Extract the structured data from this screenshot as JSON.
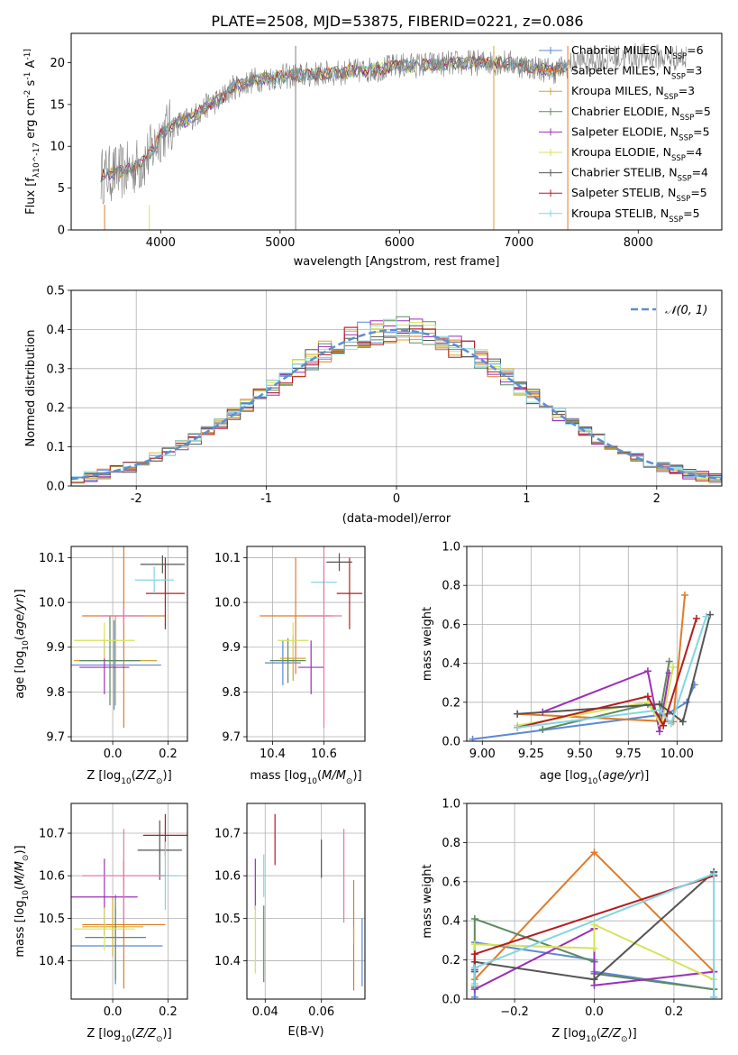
{
  "figure_title": "PLATE=2508, MJD=53875, FIBERID=0221, z=0.086",
  "palette": {
    "Chabrier MILES": "#5b87d6",
    "Salpeter MILES": "#e07b2b",
    "Kroupa MILES": "#d4a52c",
    "Chabrier ELODIE": "#5f8a60",
    "Salpeter ELODIE": "#9b30b8",
    "Kroupa ELODIE": "#d4e35a",
    "Chabrier STELIB": "#555555",
    "Salpeter STELIB": "#b51d1d",
    "Kroupa STELIB": "#82d5e3",
    "gauss": "#5b8fd0",
    "pink": "#e07aa8"
  },
  "chart_data": [
    {
      "id": "spectrum",
      "type": "line",
      "xlabel": "wavelength [Angstrom, rest frame]",
      "ylabel": "Flux [f_λ10^-17 erg cm^-2 s^-1 A^-1]",
      "xlim": [
        3250,
        8700
      ],
      "ylim": [
        0,
        23.5
      ],
      "xticks": [
        4000,
        5000,
        6000,
        7000,
        8000
      ],
      "yticks": [
        0,
        5,
        10,
        15,
        20
      ],
      "legend_position": "upper right",
      "legend": [
        {
          "name": "Chabrier MILES",
          "nssp": "6"
        },
        {
          "name": "Salpeter MILES",
          "nssp": "3"
        },
        {
          "name": "Kroupa MILES",
          "nssp": "3"
        },
        {
          "name": "Chabrier ELODIE",
          "nssp": "5"
        },
        {
          "name": "Salpeter ELODIE",
          "nssp": "5"
        },
        {
          "name": "Kroupa ELODIE",
          "nssp": "4"
        },
        {
          "name": "Chabrier STELIB",
          "nssp": "4"
        },
        {
          "name": "Salpeter STELIB",
          "nssp": "5"
        },
        {
          "name": "Kroupa STELIB",
          "nssp": "5"
        }
      ],
      "continuum": [
        [
          3500,
          6.5
        ],
        [
          3700,
          7
        ],
        [
          3850,
          8
        ],
        [
          3950,
          10
        ],
        [
          4000,
          11.5
        ],
        [
          4100,
          12.5
        ],
        [
          4200,
          13
        ],
        [
          4300,
          13.8
        ],
        [
          4400,
          15
        ],
        [
          4500,
          15.6
        ],
        [
          4600,
          17
        ],
        [
          4800,
          18
        ],
        [
          5000,
          18.3
        ],
        [
          5200,
          18.5
        ],
        [
          5500,
          18.8
        ],
        [
          5800,
          19.2
        ],
        [
          6000,
          19.6
        ],
        [
          6300,
          19.8
        ],
        [
          6600,
          20
        ],
        [
          6900,
          20
        ],
        [
          7100,
          19.5
        ],
        [
          7300,
          19
        ],
        [
          7500,
          20.2
        ],
        [
          8000,
          20.8
        ],
        [
          8400,
          20.5
        ]
      ]
    },
    {
      "id": "residuals",
      "type": "line",
      "xlabel": "(data-model)/error",
      "ylabel": "Normed distribution",
      "xlim": [
        -2.5,
        2.5
      ],
      "ylim": [
        0,
        0.5
      ],
      "xticks": [
        -2,
        -1,
        0,
        1,
        2
      ],
      "yticks": [
        0.0,
        0.1,
        0.2,
        0.3,
        0.4,
        0.5
      ],
      "grid": true,
      "legend_position": "upper right",
      "gauss_label": "𝒩(0, 1)"
    },
    {
      "id": "age-vs-Z",
      "type": "scatter",
      "xlabel": "Z [log10(Z/Z⊙)]",
      "ylabel": "age  [log10(age/yr)]",
      "xlim": [
        -0.15,
        0.27
      ],
      "ylim": [
        9.69,
        10.125
      ],
      "xticks": [
        0.0,
        0.2
      ],
      "yticks": [
        9.7,
        9.8,
        9.9,
        10.0,
        10.1
      ],
      "points": [
        {
          "model": "Chabrier MILES",
          "x": 0.005,
          "y": 9.86,
          "xerr": 0.17,
          "yerr": 0.1
        },
        {
          "model": "Salpeter MILES",
          "x": 0.04,
          "y": 9.97,
          "xerr": 0.15,
          "yerr": 0.25
        },
        {
          "model": "Kroupa MILES",
          "x": 0.01,
          "y": 9.87,
          "xerr": 0.15,
          "yerr": 0.1
        },
        {
          "model": "Chabrier ELODIE",
          "x": -0.01,
          "y": 9.87,
          "xerr": 0.11,
          "yerr": 0.1
        },
        {
          "model": "Salpeter ELODIE",
          "x": -0.03,
          "y": 9.855,
          "xerr": 0.09,
          "yerr": 0.06
        },
        {
          "model": "Kroupa ELODIE",
          "x": -0.03,
          "y": 9.915,
          "xerr": 0.11,
          "yerr": 0.04
        },
        {
          "model": "Chabrier STELIB",
          "x": 0.18,
          "y": 10.085,
          "xerr": 0.08,
          "yerr": 0.02
        },
        {
          "model": "Salpeter STELIB",
          "x": 0.19,
          "y": 10.02,
          "xerr": 0.07,
          "yerr": 0.08
        },
        {
          "model": "Kroupa STELIB",
          "x": 0.15,
          "y": 10.05,
          "xerr": 0.07,
          "yerr": 0.03
        },
        {
          "model": "pink",
          "x": 0.04,
          "y": 9.97,
          "xerr": 0.08,
          "yerr": 0.02
        }
      ]
    },
    {
      "id": "age-vs-mass",
      "type": "scatter",
      "xlabel": "mass [log10(M/M⊙)]",
      "ylabel": "",
      "xlim": [
        10.3,
        10.76
      ],
      "ylim": [
        9.69,
        10.125
      ],
      "xticks": [
        10.4,
        10.6
      ],
      "yticks": [
        9.7,
        9.8,
        9.9,
        10.0,
        10.1
      ],
      "points": [
        {
          "model": "Chabrier MILES",
          "x": 10.44,
          "y": 9.865,
          "xerr": 0.07,
          "yerr": 0.05
        },
        {
          "model": "Salpeter MILES",
          "x": 10.49,
          "y": 9.97,
          "xerr": 0.14,
          "yerr": 0.13
        },
        {
          "model": "Kroupa MILES",
          "x": 10.48,
          "y": 9.875,
          "xerr": 0.05,
          "yerr": 0.05
        },
        {
          "model": "Chabrier ELODIE",
          "x": 10.46,
          "y": 9.87,
          "xerr": 0.07,
          "yerr": 0.05
        },
        {
          "model": "Salpeter ELODIE",
          "x": 10.55,
          "y": 9.855,
          "xerr": 0.05,
          "yerr": 0.06
        },
        {
          "model": "Kroupa ELODIE",
          "x": 10.48,
          "y": 9.915,
          "xerr": 0.06,
          "yerr": 0.04
        },
        {
          "model": "Chabrier STELIB",
          "x": 10.66,
          "y": 10.09,
          "xerr": 0.05,
          "yerr": 0.02
        },
        {
          "model": "Salpeter STELIB",
          "x": 10.7,
          "y": 10.02,
          "xerr": 0.05,
          "yerr": 0.08
        },
        {
          "model": "Kroupa STELIB",
          "x": 10.6,
          "y": 10.045,
          "xerr": 0.05,
          "yerr": 0.04
        },
        {
          "model": "pink",
          "x": 10.6,
          "y": 9.97,
          "xerr": 0.07,
          "yerr": 0.25
        }
      ]
    },
    {
      "id": "massweight-vs-age",
      "type": "line",
      "xlabel": "age  [log10(age/yr)]",
      "ylabel": "mass weight",
      "xlim": [
        8.92,
        10.23
      ],
      "ylim": [
        0,
        1.0
      ],
      "xticks": [
        9.0,
        9.25,
        9.5,
        9.75,
        10.0
      ],
      "xticklabels": [
        "9.00",
        "9.25",
        "9.50",
        "9.75",
        "10.00"
      ],
      "yticks": [
        0.0,
        0.2,
        0.4,
        0.6,
        0.8,
        1.0
      ],
      "grid": true,
      "series": [
        {
          "model": "Chabrier MILES",
          "x": [
            8.95,
            9.95,
            10.05,
            10.09
          ],
          "y": [
            0.01,
            0.14,
            0.2,
            0.29
          ]
        },
        {
          "model": "Salpeter MILES",
          "x": [
            9.18,
            9.98,
            10.04
          ],
          "y": [
            0.14,
            0.1,
            0.75
          ]
        },
        {
          "model": "Chabrier ELODIE",
          "x": [
            9.31,
            9.85,
            9.91,
            9.96
          ],
          "y": [
            0.06,
            0.19,
            0.13,
            0.41
          ]
        },
        {
          "model": "Salpeter ELODIE",
          "x": [
            9.31,
            9.85,
            9.91,
            9.96
          ],
          "y": [
            0.15,
            0.36,
            0.05,
            0.35
          ]
        },
        {
          "model": "Kroupa ELODIE",
          "x": [
            9.18,
            9.85,
            9.92,
            9.98
          ],
          "y": [
            0.08,
            0.2,
            0.08,
            0.38
          ]
        },
        {
          "model": "Chabrier STELIB",
          "x": [
            9.18,
            9.91,
            10.03,
            10.17
          ],
          "y": [
            0.14,
            0.19,
            0.1,
            0.65
          ]
        },
        {
          "model": "Salpeter STELIB",
          "x": [
            9.18,
            9.85,
            9.93,
            10.1
          ],
          "y": [
            0.07,
            0.23,
            0.08,
            0.63
          ]
        },
        {
          "model": "Kroupa STELIB",
          "x": [
            9.18,
            9.91,
            9.97,
            10.15
          ],
          "y": [
            0.07,
            0.16,
            0.09,
            0.64
          ]
        }
      ]
    },
    {
      "id": "mass-vs-Z",
      "type": "scatter",
      "xlabel": "Z [log10(Z/Z⊙)]",
      "ylabel": "mass [log10(M/M⊙)]",
      "xlim": [
        -0.15,
        0.27
      ],
      "ylim": [
        10.31,
        10.77
      ],
      "xticks": [
        0.0,
        0.2
      ],
      "yticks": [
        10.4,
        10.5,
        10.6,
        10.7
      ],
      "points": [
        {
          "model": "Chabrier MILES",
          "x": 0.01,
          "y": 10.435,
          "xerr": 0.17,
          "yerr": 0.09
        },
        {
          "model": "Salpeter MILES",
          "x": 0.04,
          "y": 10.485,
          "xerr": 0.15,
          "yerr": 0.15
        },
        {
          "model": "Kroupa MILES",
          "x": 0.0,
          "y": 10.48,
          "xerr": 0.11,
          "yerr": 0.07
        },
        {
          "model": "Chabrier ELODIE",
          "x": 0.01,
          "y": 10.455,
          "xerr": 0.11,
          "yerr": 0.1
        },
        {
          "model": "Salpeter ELODIE",
          "x": -0.03,
          "y": 10.55,
          "xerr": 0.12,
          "yerr": 0.09
        },
        {
          "model": "Kroupa ELODIE",
          "x": -0.03,
          "y": 10.475,
          "xerr": 0.11,
          "yerr": 0.05
        },
        {
          "model": "Chabrier STELIB",
          "x": 0.17,
          "y": 10.66,
          "xerr": 0.08,
          "yerr": 0.07
        },
        {
          "model": "Salpeter STELIB",
          "x": 0.19,
          "y": 10.695,
          "xerr": 0.08,
          "yerr": 0.05
        },
        {
          "model": "Kroupa STELIB",
          "x": 0.19,
          "y": 10.6,
          "xerr": 0.05,
          "yerr": 0.08
        },
        {
          "model": "pink",
          "x": 0.04,
          "y": 10.6,
          "xerr": 0.15,
          "yerr": 0.11
        }
      ]
    },
    {
      "id": "mass-vs-EBV",
      "type": "scatter",
      "xlabel": "E(B-V)",
      "ylabel": "",
      "xlim": [
        0.0335,
        0.0755
      ],
      "ylim": [
        10.31,
        10.77
      ],
      "xticks": [
        0.04,
        0.06
      ],
      "yticks": [
        10.4,
        10.5,
        10.6,
        10.7
      ],
      "points": [
        {
          "model": "Chabrier MILES",
          "x": 0.0745,
          "y": 10.42,
          "yerr": 0.08
        },
        {
          "model": "Salpeter MILES",
          "x": 0.0715,
          "y": 10.46,
          "yerr": 0.13
        },
        {
          "model": "Kroupa MILES",
          "x": 0.0715,
          "y": 10.46,
          "yerr": 0.02
        },
        {
          "model": "Chabrier ELODIE",
          "x": 0.0395,
          "y": 10.44,
          "yerr": 0.09
        },
        {
          "model": "Salpeter ELODIE",
          "x": 0.0365,
          "y": 10.58,
          "yerr": 0.06
        },
        {
          "model": "Kroupa ELODIE",
          "x": 0.0365,
          "y": 10.45,
          "yerr": 0.08
        },
        {
          "model": "Chabrier STELIB",
          "x": 0.06,
          "y": 10.64,
          "yerr": 0.045
        },
        {
          "model": "Salpeter STELIB",
          "x": 0.0435,
          "y": 10.685,
          "yerr": 0.06
        },
        {
          "model": "Kroupa STELIB",
          "x": 0.0395,
          "y": 10.6,
          "yerr": 0.05
        },
        {
          "model": "pink",
          "x": 0.068,
          "y": 10.6,
          "yerr": 0.11
        }
      ]
    },
    {
      "id": "massweight-vs-Z",
      "type": "line",
      "xlabel": "Z [log10(Z/Z⊙)]",
      "ylabel": "mass weight",
      "xlim": [
        -0.32,
        0.32
      ],
      "ylim": [
        0,
        1.0
      ],
      "xticks": [
        -0.2,
        0.0,
        0.2
      ],
      "xticklabels": [
        "−0.2",
        "0.0",
        "0.2"
      ],
      "yticks": [
        0.0,
        0.2,
        0.4,
        0.6,
        0.8,
        1.0
      ],
      "grid": true,
      "series": [
        {
          "model": "Chabrier MILES",
          "x": [
            -0.3,
            -0.3,
            0.0,
            0.0,
            0.3,
            0.3
          ],
          "y": [
            0.01,
            0.29,
            0.2,
            0.14,
            0.05,
            0.01
          ]
        },
        {
          "model": "Salpeter MILES",
          "x": [
            -0.3,
            0.0,
            0.3
          ],
          "y": [
            0.1,
            0.75,
            0.14
          ]
        },
        {
          "model": "Chabrier ELODIE",
          "x": [
            -0.3,
            -0.3,
            0.0,
            0.0,
            0.3,
            0.3
          ],
          "y": [
            0.06,
            0.41,
            0.19,
            0.13,
            0.05,
            0.05
          ]
        },
        {
          "model": "Salpeter ELODIE",
          "x": [
            -0.3,
            -0.3,
            0.0,
            0.0,
            0.3,
            0.3
          ],
          "y": [
            0.15,
            0.05,
            0.36,
            0.07,
            0.14,
            0.14
          ]
        },
        {
          "model": "Kroupa ELODIE",
          "x": [
            -0.3,
            -0.3,
            0.0,
            0.0,
            0.3,
            0.3
          ],
          "y": [
            0.08,
            0.28,
            0.26,
            0.38,
            0.1,
            0.1
          ]
        },
        {
          "model": "Chabrier STELIB",
          "x": [
            -0.3,
            -0.3,
            0.0,
            0.3,
            0.3
          ],
          "y": [
            0.14,
            0.19,
            0.1,
            0.65,
            0.65
          ]
        },
        {
          "model": "Salpeter STELIB",
          "x": [
            -0.3,
            -0.3,
            0.3,
            0.3
          ],
          "y": [
            0.07,
            0.23,
            0.63,
            0.63
          ]
        },
        {
          "model": "Kroupa STELIB",
          "x": [
            -0.3,
            -0.3,
            0.3,
            0.3
          ],
          "y": [
            0.07,
            0.16,
            0.64,
            0.01
          ]
        }
      ]
    }
  ]
}
